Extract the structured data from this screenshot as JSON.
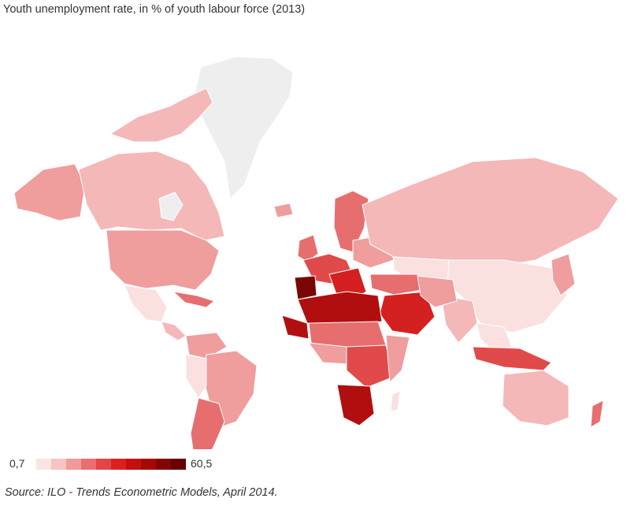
{
  "title": "Youth unemployment rate, in % of youth labour force (2013)",
  "legend": {
    "min_label": "0,7",
    "max_label": "60,5",
    "colors": [
      "#fbe4e4",
      "#f6c4c4",
      "#f09a9a",
      "#ea6e6e",
      "#e34545",
      "#dc1f1f",
      "#c40f0f",
      "#a60707",
      "#850404",
      "#650202"
    ]
  },
  "source": "Source: ILO - Trends Econometric Models, April 2014.",
  "palette": {
    "no_data": "#eeeeee",
    "very_low": "#fbe0e0",
    "low": "#f4b8b8",
    "mid_low": "#ef9d9d",
    "mid": "#e76e6e",
    "mid_high": "#e14a4a",
    "high": "#d42020",
    "very_high": "#b10f0f",
    "extreme": "#7a0606",
    "border": "#ffffff"
  }
}
